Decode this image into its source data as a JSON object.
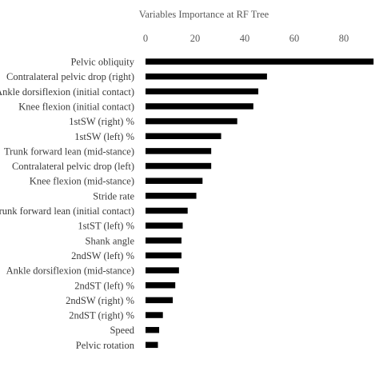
{
  "chart_data": {
    "type": "bar",
    "orientation": "horizontal",
    "title": "Variables Importance at RF Tree",
    "xlabel": "",
    "ylabel": "",
    "xlim": [
      0,
      90
    ],
    "x_ticks": [
      0,
      20,
      40,
      60,
      80
    ],
    "x_axis_position": "top",
    "grid": false,
    "legend": "none",
    "bar_color": "#000000",
    "text_color": "#595959",
    "categories": [
      "Pelvic obliquity",
      "Contralateral pelvic drop (right)",
      "Ankle dorsiflexion (initial contact)",
      "Knee flexion (initial contact)",
      "1stSW (right) %",
      "1stSW (left) %",
      "Trunk forward lean (mid-stance)",
      "Contralateral pelvic drop (left)",
      "Knee flexion (mid-stance)",
      "Stride rate",
      "Trunk forward lean (initial contact)",
      "1stST (left) %",
      "Shank angle",
      "2ndSW (left) %",
      "Ankle dorsiflexion (mid-stance)",
      "2ndST (left) %",
      "2ndSW (right) %",
      "2ndST (right) %",
      "Speed",
      "Pelvic rotation"
    ],
    "values": [
      92,
      49,
      45.5,
      43.5,
      37,
      30.5,
      26.5,
      26.5,
      23,
      20.5,
      17,
      15,
      14.5,
      14.5,
      13.5,
      12,
      11,
      7,
      5.5,
      5
    ]
  }
}
